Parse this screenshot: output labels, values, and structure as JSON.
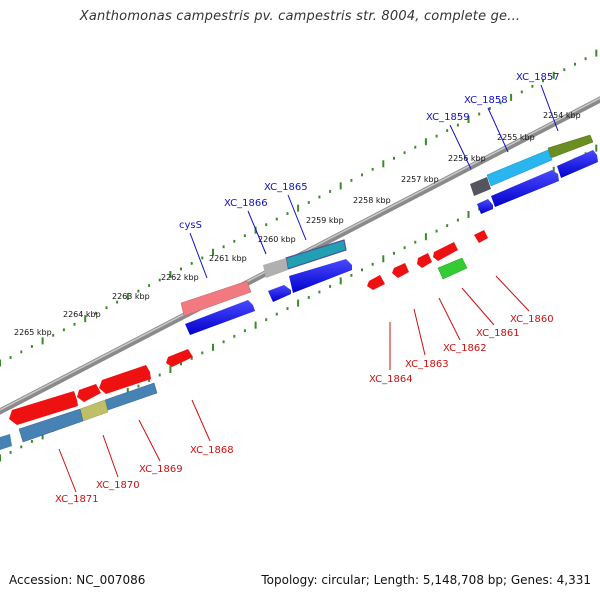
{
  "title": "Xanthomonas campestris pv. campestris str. 8004, complete ge...",
  "footer": {
    "accession": "Accession: NC_007086",
    "summary": "Topology: circular; Length: 5,148,708 bp; Genes: 4,331"
  },
  "colors": {
    "backbone": "#8a8a8a",
    "tick": "#3a8a2a",
    "forward_label": "#1010cc",
    "reverse_label": "#cc1010",
    "leader": "#cc1010",
    "leader_forward": "#1010cc"
  },
  "scale_labels": [
    "2254 kbp",
    "2255 kbp",
    "2256 kbp",
    "2257 kbp",
    "2258 kbp",
    "2259 kbp",
    "2260 kbp",
    "2261 kbp",
    "2262 kbp",
    "2263 kbp",
    "2264 kbp",
    "2265 kbp"
  ],
  "forward_genes": [
    {
      "label": "XC_1857"
    },
    {
      "label": "XC_1858"
    },
    {
      "label": "XC_1859"
    },
    {
      "label": "XC_1865"
    },
    {
      "label": "XC_1866"
    },
    {
      "label": "cysS"
    }
  ],
  "reverse_genes": [
    {
      "label": "XC_1860"
    },
    {
      "label": "XC_1861"
    },
    {
      "label": "XC_1862"
    },
    {
      "label": "XC_1863"
    },
    {
      "label": "XC_1864"
    },
    {
      "label": "XC_1868"
    },
    {
      "label": "XC_1869"
    },
    {
      "label": "XC_1870"
    },
    {
      "label": "XC_1871"
    }
  ]
}
